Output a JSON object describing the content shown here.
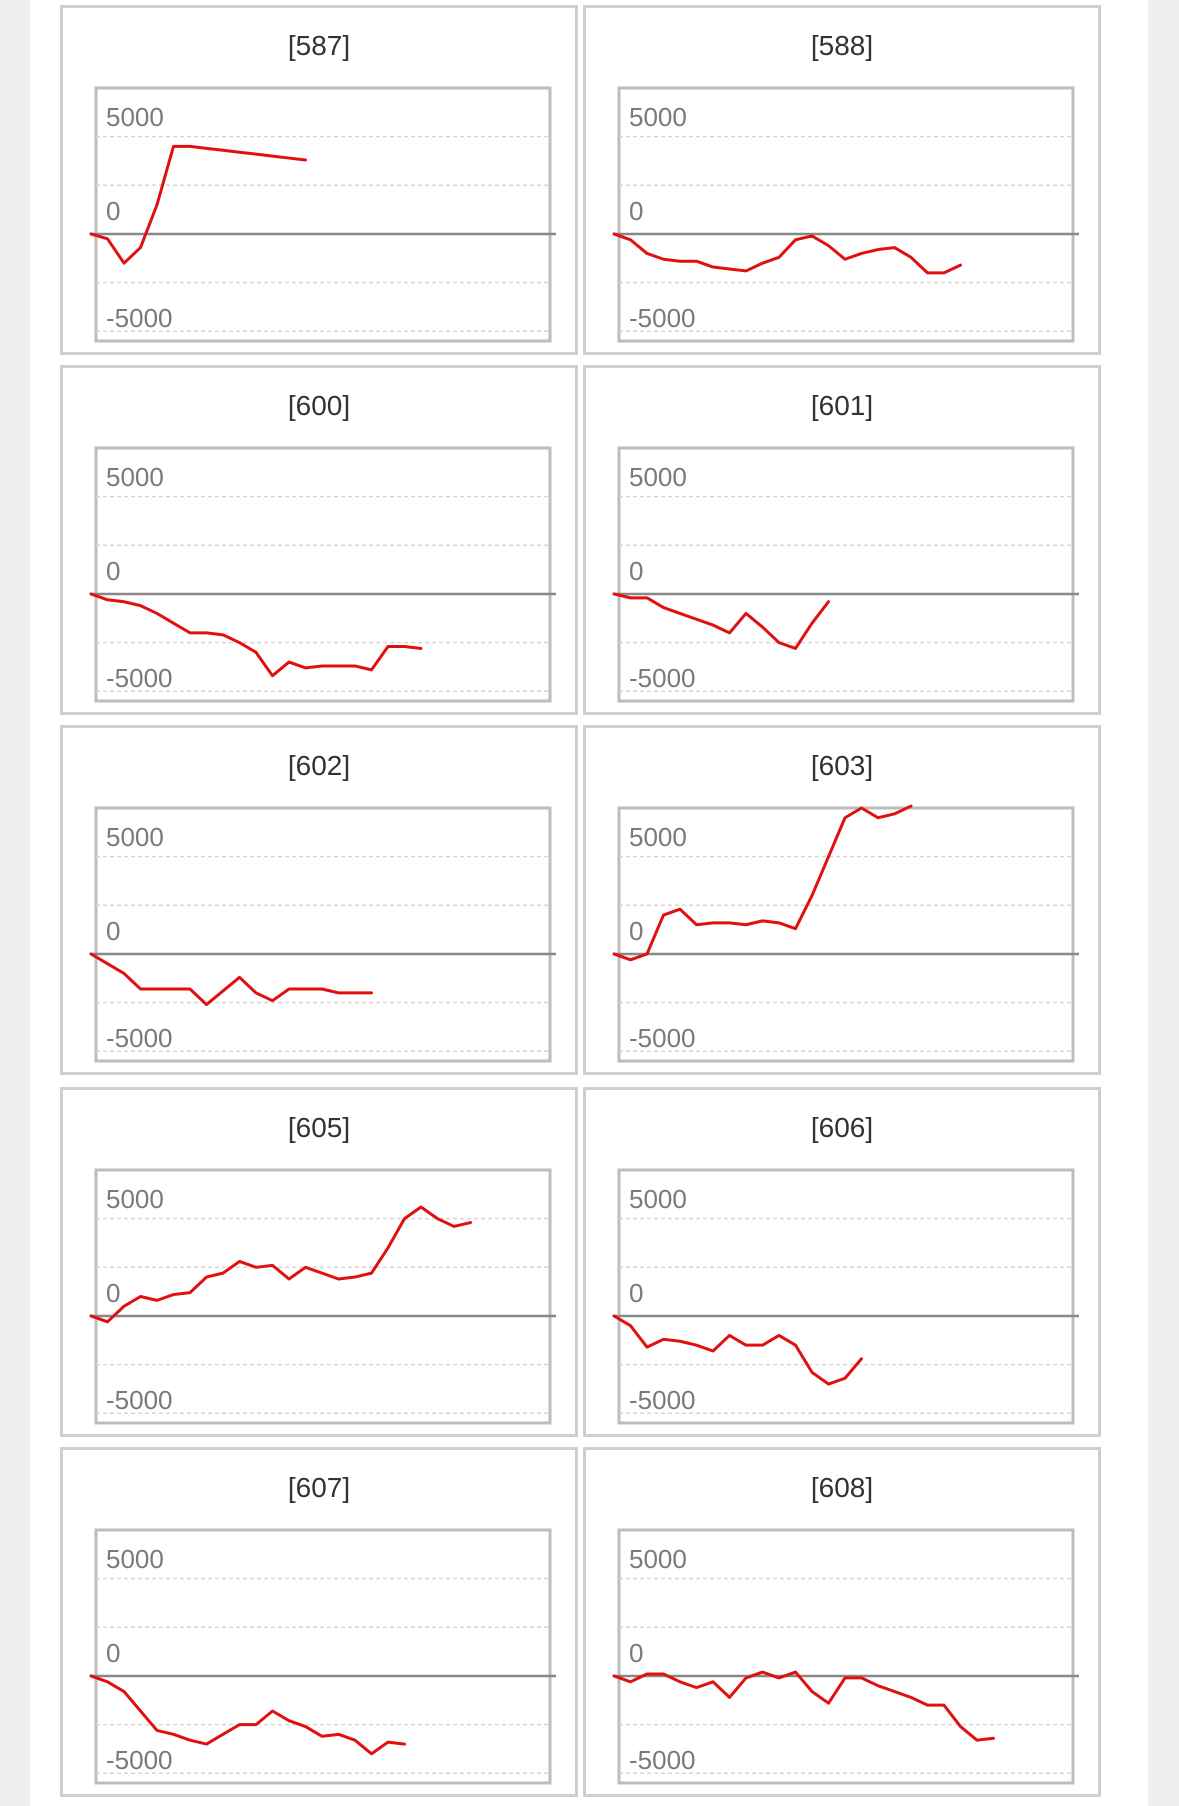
{
  "colors": {
    "line": "#e01010",
    "zero": "#888888",
    "grid": "#d6d6d6",
    "frame": "#bdbdbd",
    "tick": "#7a7a7a"
  },
  "chart_data": [
    {
      "type": "line",
      "title": "[587]",
      "ylim": [
        -5500,
        7500
      ],
      "yticks": [
        5000,
        0,
        -5000
      ],
      "grid": true,
      "y": [
        0,
        -250,
        -1500,
        -700,
        1500,
        4500,
        4500,
        4400,
        4300,
        4200,
        4100,
        4000,
        3900,
        3800
      ]
    },
    {
      "type": "line",
      "title": "[588]",
      "ylim": [
        -5500,
        7500
      ],
      "yticks": [
        5000,
        0,
        -5000
      ],
      "grid": true,
      "y": [
        0,
        -300,
        -1000,
        -1300,
        -1400,
        -1400,
        -1700,
        -1800,
        -1900,
        -1500,
        -1200,
        -300,
        -100,
        -600,
        -1300,
        -1000,
        -800,
        -700,
        -1200,
        -2000,
        -2000,
        -1600
      ]
    },
    {
      "type": "line",
      "title": "[600]",
      "ylim": [
        -5500,
        7500
      ],
      "yticks": [
        5000,
        0,
        -5000
      ],
      "grid": true,
      "y": [
        0,
        -300,
        -400,
        -600,
        -1000,
        -1500,
        -2000,
        -2000,
        -2100,
        -2500,
        -3000,
        -4200,
        -3500,
        -3800,
        -3700,
        -3700,
        -3700,
        -3900,
        -2700,
        -2700,
        -2800
      ]
    },
    {
      "type": "line",
      "title": "[601]",
      "ylim": [
        -5500,
        7500
      ],
      "yticks": [
        5000,
        0,
        -5000
      ],
      "grid": true,
      "y": [
        0,
        -200,
        -200,
        -700,
        -1000,
        -1300,
        -1600,
        -2000,
        -1000,
        -1700,
        -2500,
        -2800,
        -1500,
        -400
      ]
    },
    {
      "type": "line",
      "title": "[602]",
      "ylim": [
        -5500,
        7500
      ],
      "yticks": [
        5000,
        0,
        -5000
      ],
      "grid": true,
      "y": [
        0,
        -500,
        -1000,
        -1800,
        -1800,
        -1800,
        -1800,
        -2600,
        -1900,
        -1200,
        -2000,
        -2400,
        -1800,
        -1800,
        -1800,
        -2000,
        -2000,
        -2000
      ]
    },
    {
      "type": "line",
      "title": "[603]",
      "ylim": [
        -5500,
        7500
      ],
      "yticks": [
        5000,
        0,
        -5000
      ],
      "grid": true,
      "y": [
        0,
        -300,
        0,
        2000,
        2300,
        1500,
        1600,
        1600,
        1500,
        1700,
        1600,
        1300,
        3000,
        5000,
        7000,
        7500,
        7000,
        7200,
        7600
      ]
    },
    {
      "type": "line",
      "title": "[605]",
      "ylim": [
        -5500,
        7500
      ],
      "yticks": [
        5000,
        0,
        -5000
      ],
      "grid": true,
      "y": [
        0,
        -300,
        500,
        1000,
        800,
        1100,
        1200,
        2000,
        2200,
        2800,
        2500,
        2600,
        1900,
        2500,
        2200,
        1900,
        2000,
        2200,
        3500,
        5000,
        5600,
        5000,
        4600,
        4800
      ]
    },
    {
      "type": "line",
      "title": "[606]",
      "ylim": [
        -5500,
        7500
      ],
      "yticks": [
        5000,
        0,
        -5000
      ],
      "grid": true,
      "y": [
        0,
        -500,
        -1600,
        -1200,
        -1300,
        -1500,
        -1800,
        -1000,
        -1500,
        -1500,
        -1000,
        -1500,
        -2900,
        -3500,
        -3200,
        -2200
      ]
    },
    {
      "type": "line",
      "title": "[607]",
      "ylim": [
        -5500,
        7500
      ],
      "yticks": [
        5000,
        0,
        -5000
      ],
      "grid": true,
      "y": [
        0,
        -300,
        -800,
        -1800,
        -2800,
        -3000,
        -3300,
        -3500,
        -3000,
        -2500,
        -2500,
        -1800,
        -2300,
        -2600,
        -3100,
        -3000,
        -3300,
        -4000,
        -3400,
        -3500
      ]
    },
    {
      "type": "line",
      "title": "[608]",
      "ylim": [
        -5500,
        7500
      ],
      "yticks": [
        5000,
        0,
        -5000
      ],
      "grid": true,
      "y": [
        0,
        -300,
        100,
        100,
        -300,
        -600,
        -300,
        -1100,
        -100,
        200,
        -100,
        200,
        -800,
        -1400,
        -100,
        -100,
        -500,
        -800,
        -1100,
        -1500,
        -1500,
        -2600,
        -3300,
        -3200
      ]
    }
  ]
}
